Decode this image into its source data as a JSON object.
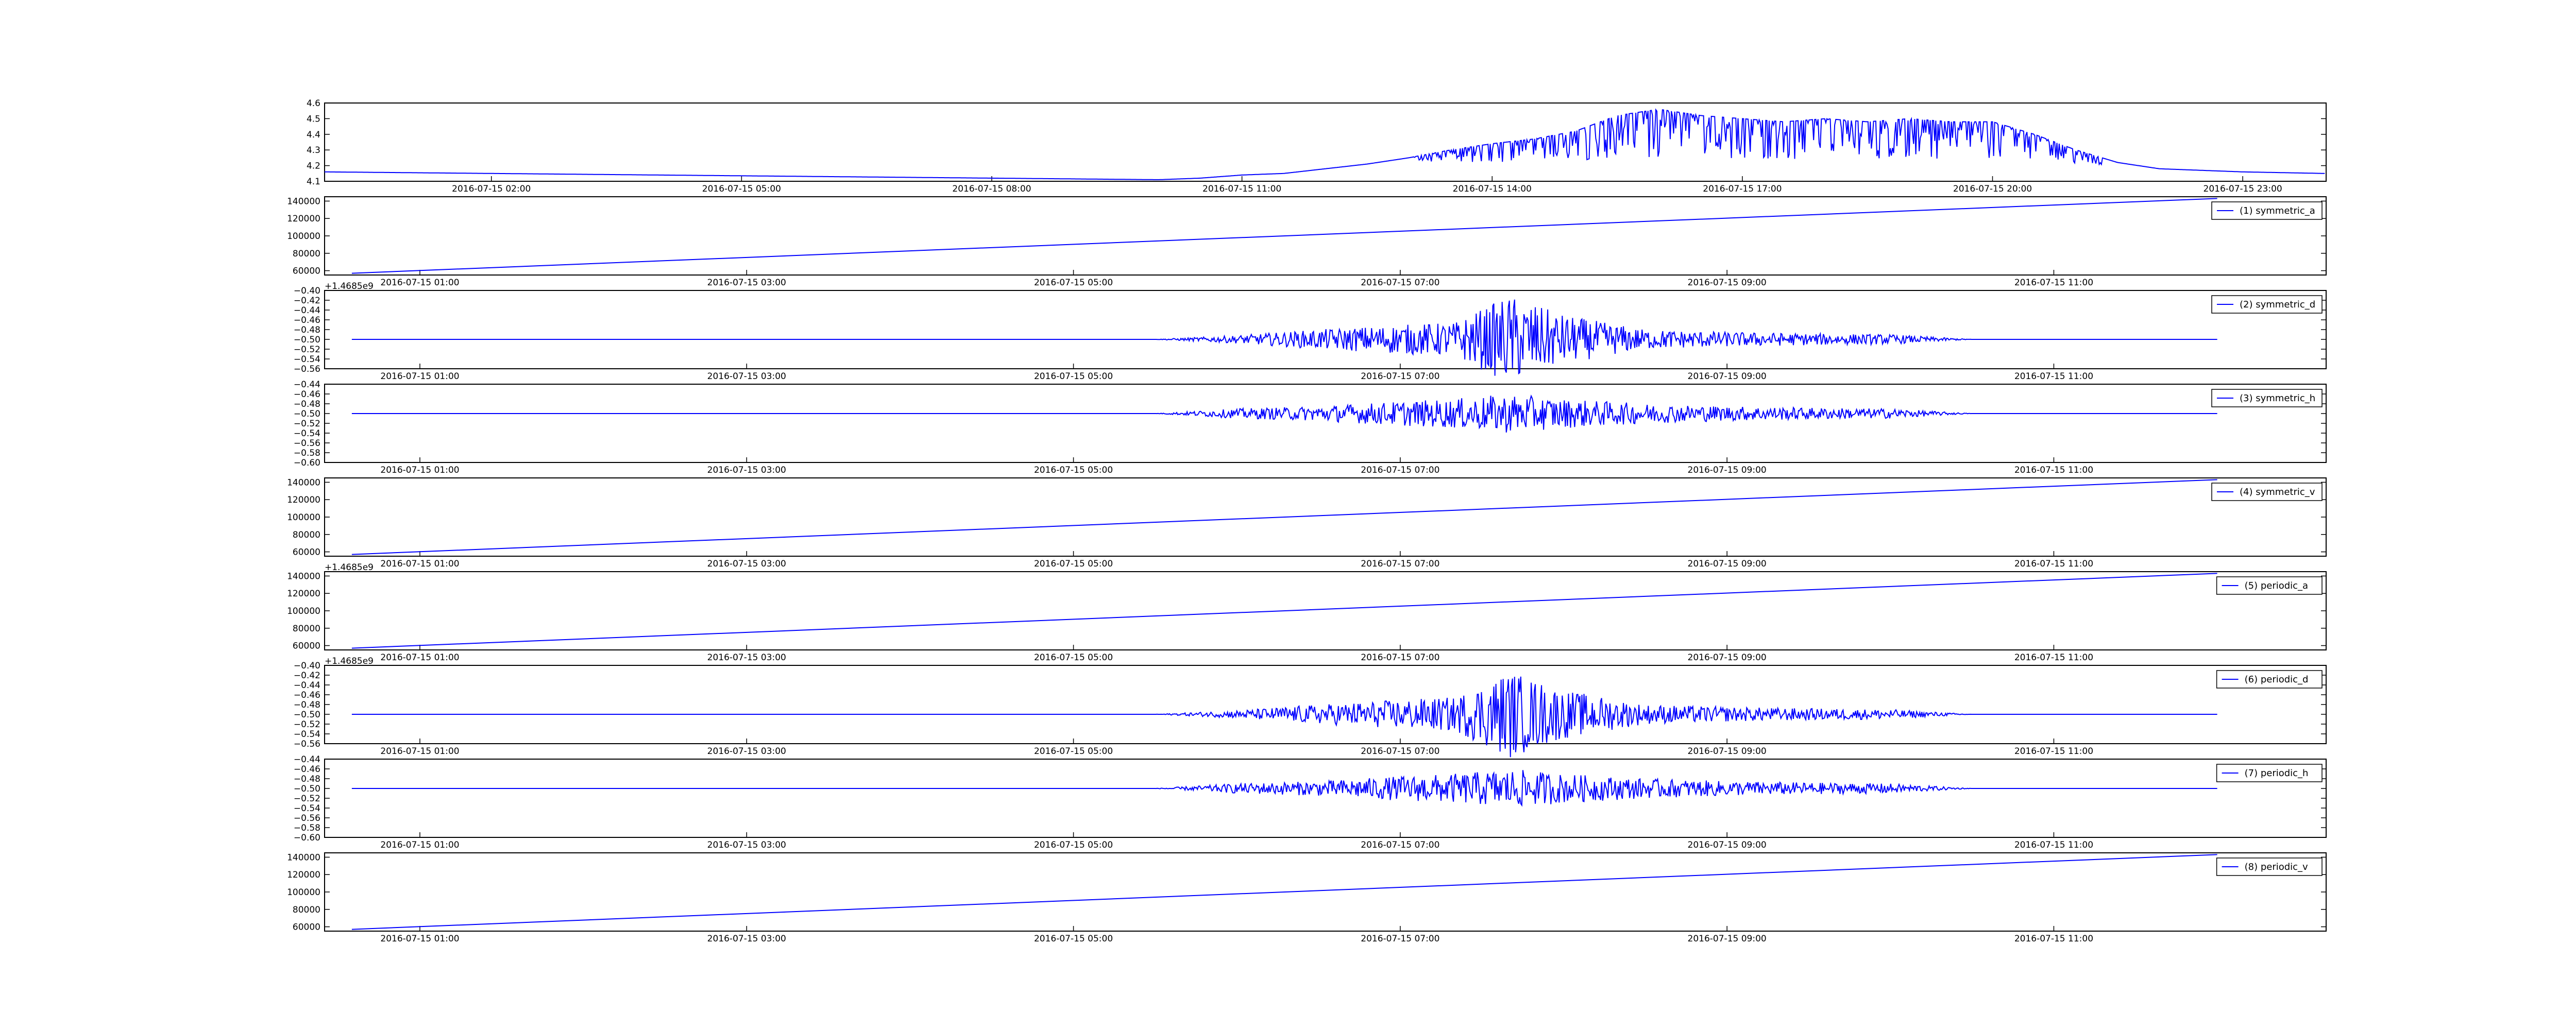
{
  "chart_data": [
    {
      "type": "line",
      "title": "",
      "xlabel": "",
      "ylabel": "",
      "legend": null,
      "ylim": [
        4.1,
        4.6
      ],
      "yticks": [
        "4.1",
        "4.2",
        "4.3",
        "4.4",
        "4.5",
        "4.6"
      ],
      "xticks": [
        "2016-07-15 02:00",
        "2016-07-15 05:00",
        "2016-07-15 08:00",
        "2016-07-15 11:00",
        "2016-07-15 14:00",
        "2016-07-15 17:00",
        "2016-07-15 20:00",
        "2016-07-15 23:00"
      ],
      "offset_label": "",
      "color": "#0000ff",
      "series": [
        {
          "x": [
            "00:00",
            "01:00",
            "02:00",
            "03:00",
            "04:00",
            "05:00",
            "06:00",
            "07:00",
            "08:00",
            "09:00",
            "10:00",
            "10:30",
            "11:00",
            "11:30",
            "12:00",
            "12:30",
            "13:00",
            "13:30",
            "14:00",
            "14:30",
            "15:00",
            "15:30",
            "16:00",
            "16:30",
            "17:00",
            "17:30",
            "18:00",
            "18:30",
            "19:00",
            "19:30",
            "20:00",
            "20:30",
            "21:00",
            "21:30",
            "22:00",
            "23:00",
            "23:59"
          ],
          "values": [
            4.16,
            4.155,
            4.15,
            4.145,
            4.14,
            4.135,
            4.13,
            4.125,
            4.12,
            4.115,
            4.11,
            4.12,
            4.14,
            4.15,
            4.18,
            4.21,
            4.25,
            4.3,
            4.34,
            4.37,
            4.42,
            4.52,
            4.56,
            4.52,
            4.5,
            4.48,
            4.5,
            4.48,
            4.5,
            4.48,
            4.48,
            4.4,
            4.3,
            4.22,
            4.18,
            4.16,
            4.15
          ]
        }
      ]
    },
    {
      "type": "line",
      "legend": "(1) symmetric_a",
      "ylim": [
        55000,
        145000
      ],
      "yticks": [
        "60000",
        "80000",
        "100000",
        "120000",
        "140000"
      ],
      "xticks": [
        "2016-07-15 01:00",
        "2016-07-15 03:00",
        "2016-07-15 05:00",
        "2016-07-15 07:00",
        "2016-07-15 09:00",
        "2016-07-15 11:00"
      ],
      "offset_label": "+1.4685e9",
      "color": "#0000ff",
      "series": [
        {
          "x": [
            "00:35",
            "12:00"
          ],
          "values": [
            57000,
            143000
          ]
        }
      ]
    },
    {
      "type": "line",
      "legend": "(2) symmetric_d",
      "ylim": [
        -0.56,
        -0.4
      ],
      "yticks": [
        "−0.56",
        "−0.54",
        "−0.52",
        "−0.50",
        "−0.48",
        "−0.46",
        "−0.44",
        "−0.42",
        "−0.40"
      ],
      "xticks": [
        "2016-07-15 01:00",
        "2016-07-15 03:00",
        "2016-07-15 05:00",
        "2016-07-15 07:00",
        "2016-07-15 09:00",
        "2016-07-15 11:00"
      ],
      "offset_label": "",
      "color": "#0000ff",
      "series": [
        {
          "x": [
            "00:35",
            "05:30",
            "06:00",
            "06:30",
            "07:00",
            "07:20",
            "07:40",
            "08:00",
            "08:30",
            "09:00",
            "09:30",
            "10:00",
            "10:30",
            "12:00"
          ],
          "values": [
            -0.5,
            -0.5,
            -0.492,
            -0.48,
            -0.47,
            -0.465,
            -0.41,
            -0.45,
            -0.48,
            -0.485,
            -0.488,
            -0.49,
            -0.5,
            -0.5
          ]
        }
      ]
    },
    {
      "type": "line",
      "legend": "(3) symmetric_h",
      "ylim": [
        -0.6,
        -0.44
      ],
      "yticks": [
        "−0.60",
        "−0.58",
        "−0.56",
        "−0.54",
        "−0.52",
        "−0.50",
        "−0.48",
        "−0.46",
        "−0.44"
      ],
      "xticks": [
        "2016-07-15 01:00",
        "2016-07-15 03:00",
        "2016-07-15 05:00",
        "2016-07-15 07:00",
        "2016-07-15 09:00",
        "2016-07-15 11:00"
      ],
      "offset_label": "",
      "color": "#0000ff",
      "series": [
        {
          "x": [
            "00:35",
            "05:30",
            "06:00",
            "06:30",
            "07:00",
            "07:20",
            "07:40",
            "08:00",
            "08:30",
            "09:00",
            "09:30",
            "10:00",
            "10:30",
            "12:00"
          ],
          "values": [
            -0.5,
            -0.5,
            -0.49,
            -0.485,
            -0.475,
            -0.47,
            -0.46,
            -0.47,
            -0.48,
            -0.485,
            -0.488,
            -0.49,
            -0.5,
            -0.5
          ]
        }
      ]
    },
    {
      "type": "line",
      "legend": "(4) symmetric_v",
      "ylim": [
        55000,
        145000
      ],
      "yticks": [
        "60000",
        "80000",
        "100000",
        "120000",
        "140000"
      ],
      "xticks": [
        "2016-07-15 01:00",
        "2016-07-15 03:00",
        "2016-07-15 05:00",
        "2016-07-15 07:00",
        "2016-07-15 09:00",
        "2016-07-15 11:00"
      ],
      "offset_label": "+1.4685e9",
      "color": "#0000ff",
      "series": [
        {
          "x": [
            "00:35",
            "12:00"
          ],
          "values": [
            57000,
            143000
          ]
        }
      ]
    },
    {
      "type": "line",
      "legend": "(5) periodic_a",
      "ylim": [
        55000,
        145000
      ],
      "yticks": [
        "60000",
        "80000",
        "100000",
        "120000",
        "140000"
      ],
      "xticks": [
        "2016-07-15 01:00",
        "2016-07-15 03:00",
        "2016-07-15 05:00",
        "2016-07-15 07:00",
        "2016-07-15 09:00",
        "2016-07-15 11:00"
      ],
      "offset_label": "+1.4685e9",
      "color": "#0000ff",
      "series": [
        {
          "x": [
            "00:35",
            "12:00"
          ],
          "values": [
            57000,
            143000
          ]
        }
      ]
    },
    {
      "type": "line",
      "legend": "(6) periodic_d",
      "ylim": [
        -0.56,
        -0.4
      ],
      "yticks": [
        "−0.56",
        "−0.54",
        "−0.52",
        "−0.50",
        "−0.48",
        "−0.46",
        "−0.44",
        "−0.42",
        "−0.40"
      ],
      "xticks": [
        "2016-07-15 01:00",
        "2016-07-15 03:00",
        "2016-07-15 05:00",
        "2016-07-15 07:00",
        "2016-07-15 09:00",
        "2016-07-15 11:00"
      ],
      "offset_label": "",
      "color": "#0000ff",
      "series": [
        {
          "x": [
            "00:35",
            "05:30",
            "06:00",
            "06:30",
            "07:00",
            "07:20",
            "07:40",
            "08:00",
            "08:30",
            "09:00",
            "09:30",
            "10:00",
            "10:30",
            "12:00"
          ],
          "values": [
            -0.5,
            -0.5,
            -0.492,
            -0.48,
            -0.47,
            -0.465,
            -0.41,
            -0.45,
            -0.48,
            -0.485,
            -0.488,
            -0.49,
            -0.5,
            -0.5
          ]
        }
      ]
    },
    {
      "type": "line",
      "legend": "(7) periodic_h",
      "ylim": [
        -0.6,
        -0.44
      ],
      "yticks": [
        "−0.60",
        "−0.58",
        "−0.56",
        "−0.54",
        "−0.52",
        "−0.50",
        "−0.48",
        "−0.46",
        "−0.44"
      ],
      "xticks": [
        "2016-07-15 01:00",
        "2016-07-15 03:00",
        "2016-07-15 05:00",
        "2016-07-15 07:00",
        "2016-07-15 09:00",
        "2016-07-15 11:00"
      ],
      "offset_label": "",
      "color": "#0000ff",
      "series": [
        {
          "x": [
            "00:35",
            "05:30",
            "06:00",
            "06:30",
            "07:00",
            "07:20",
            "07:40",
            "08:00",
            "08:30",
            "09:00",
            "09:30",
            "10:00",
            "10:30",
            "12:00"
          ],
          "values": [
            -0.5,
            -0.5,
            -0.49,
            -0.485,
            -0.475,
            -0.47,
            -0.46,
            -0.47,
            -0.48,
            -0.485,
            -0.488,
            -0.49,
            -0.5,
            -0.5
          ]
        }
      ]
    },
    {
      "type": "line",
      "legend": "(8) periodic_v",
      "ylim": [
        55000,
        145000
      ],
      "yticks": [
        "60000",
        "80000",
        "100000",
        "120000",
        "140000"
      ],
      "xticks": [
        "2016-07-15 01:00",
        "2016-07-15 03:00",
        "2016-07-15 05:00",
        "2016-07-15 07:00",
        "2016-07-15 09:00",
        "2016-07-15 11:00"
      ],
      "offset_label": "",
      "color": "#0000ff",
      "series": [
        {
          "x": [
            "00:35",
            "12:00"
          ],
          "values": [
            57000,
            143000
          ]
        }
      ]
    }
  ]
}
